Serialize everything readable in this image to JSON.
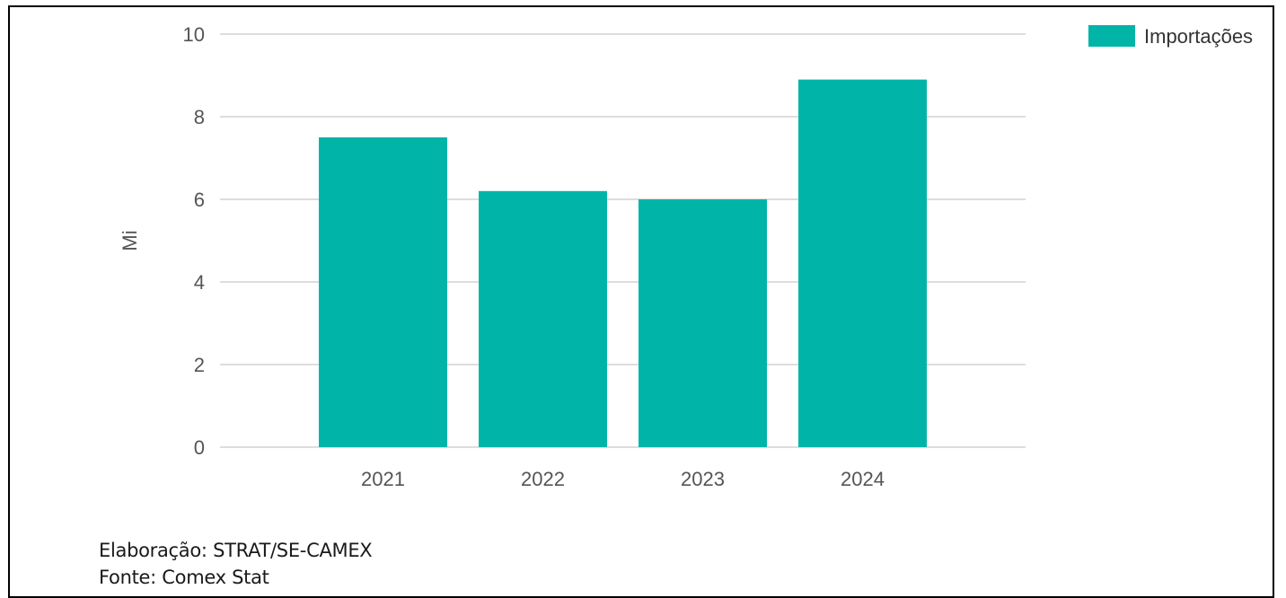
{
  "chart_data": {
    "type": "bar",
    "categories": [
      "2021",
      "2022",
      "2023",
      "2024"
    ],
    "series": [
      {
        "name": "Importações",
        "values": [
          7.5,
          6.2,
          6.0,
          8.9
        ],
        "color": "#00B5A8"
      }
    ],
    "ylabel": "Mi",
    "ylim": [
      0,
      10
    ],
    "yticks": [
      0,
      2,
      4,
      6,
      8,
      10
    ],
    "grid": true,
    "legend_position": "top-right",
    "gridline_color": "#dddddd"
  },
  "footer": {
    "elaboracao": "Elaboração: STRAT/SE-CAMEX",
    "fonte": "Fonte: Comex Stat"
  }
}
